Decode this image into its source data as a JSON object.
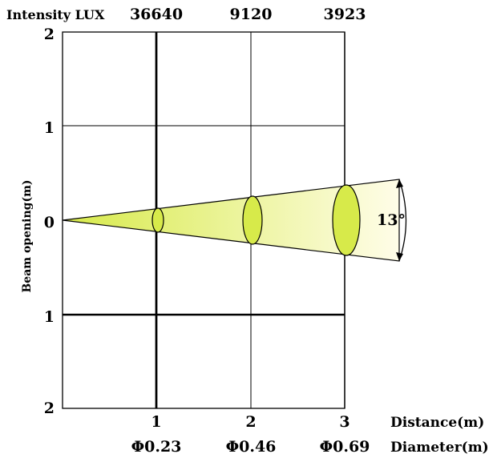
{
  "header": {
    "intensity_label": "Intensity LUX",
    "intensity_values": [
      "36640",
      "9120",
      "3923"
    ]
  },
  "y_axis": {
    "label": "Beam opening(m)",
    "ticks": [
      "2",
      "1",
      "0",
      "1",
      "2"
    ]
  },
  "x_axis": {
    "distance_ticks": [
      "1",
      "2",
      "3"
    ],
    "distance_label": "Distance(m)",
    "diameter_ticks": [
      "Φ0.23",
      "Φ0.46",
      "Φ0.69"
    ],
    "diameter_label": "Diameter(m)"
  },
  "beam": {
    "angle_label": "13°",
    "angle_degrees": 13,
    "color": "#d7ea4a",
    "rim_color": "#fffde0"
  },
  "chart_data": {
    "type": "diagram",
    "distances_m": [
      1,
      2,
      3
    ],
    "diameters_m": [
      0.23,
      0.46,
      0.69
    ],
    "intensity_lux": [
      36640,
      9120,
      3923
    ],
    "beam_angle_deg": 13,
    "x_range_m": [
      0,
      3
    ],
    "y_range_m": [
      -2,
      2
    ]
  }
}
